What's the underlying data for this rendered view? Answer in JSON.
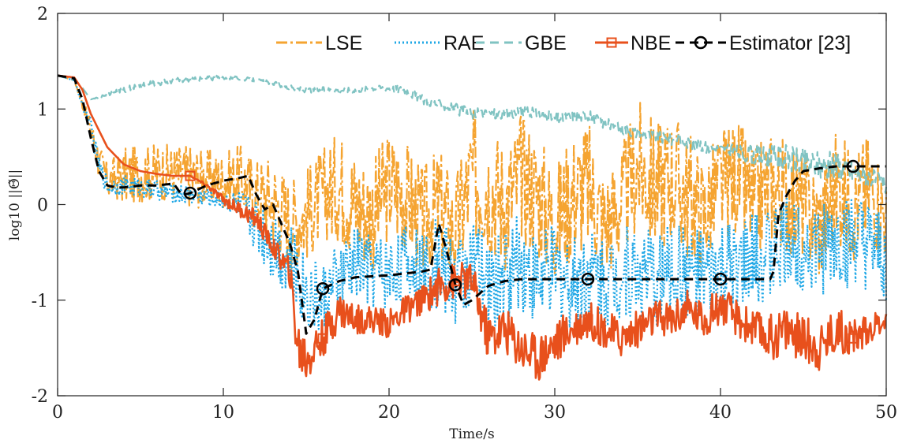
{
  "chart_data": {
    "type": "line",
    "xlabel": "Time/s",
    "ylabel": "log10 ||Θ̃||",
    "xlim": [
      0,
      50
    ],
    "ylim": [
      -2,
      2
    ],
    "xticks": [
      "0",
      "10",
      "20",
      "30",
      "40",
      "50"
    ],
    "yticks": [
      "-2",
      "-1",
      "0",
      "1",
      "2"
    ],
    "grid": false,
    "legend_placement": "top-right",
    "series": [
      {
        "name": "LSE",
        "color": "#f5a431",
        "style": "dash-dot",
        "marker": "none",
        "x": [
          0,
          1,
          2,
          2.5,
          3,
          4,
          5,
          6,
          7,
          8,
          9,
          10,
          11,
          12,
          13,
          14,
          15,
          16,
          17,
          18,
          19,
          20,
          21,
          22,
          23,
          24,
          25,
          26,
          27,
          28,
          29,
          30,
          31,
          32,
          33,
          34,
          35,
          36,
          37,
          38,
          39,
          40,
          41,
          42,
          43,
          44,
          45,
          46,
          47,
          48,
          49,
          50
        ],
        "values": [
          1.35,
          1.3,
          0.8,
          0.45,
          0.25,
          0.3,
          0.32,
          0.35,
          0.33,
          0.3,
          0.28,
          0.25,
          0.28,
          0.1,
          0.05,
          -0.2,
          -0.1,
          0.1,
          0.2,
          0.0,
          -0.1,
          0.2,
          0.1,
          -0.2,
          0.0,
          -0.3,
          0.3,
          0.2,
          0.0,
          0.3,
          0.1,
          -0.2,
          0.1,
          0.2,
          -0.2,
          0.0,
          0.4,
          0.2,
          0.3,
          0.1,
          -0.1,
          0.2,
          0.3,
          0.0,
          0.2,
          0.1,
          0.0,
          -0.2,
          0.2,
          0.0,
          0.2,
          -0.1
        ],
        "spread": [
          0,
          0,
          0.1,
          0.2,
          0.2,
          0.3,
          0.3,
          0.3,
          0.3,
          0.35,
          0.3,
          0.3,
          0.35,
          0.4,
          0.5,
          0.5,
          0.5,
          0.5,
          0.6,
          0.6,
          0.6,
          0.6,
          0.6,
          0.6,
          0.6,
          0.6,
          0.7,
          0.7,
          0.7,
          0.7,
          0.7,
          0.6,
          0.7,
          0.7,
          0.6,
          0.6,
          0.7,
          0.7,
          0.7,
          0.7,
          0.6,
          0.6,
          0.6,
          0.6,
          0.6,
          0.6,
          0.6,
          0.6,
          0.6,
          0.6,
          0.6,
          0.5
        ]
      },
      {
        "name": "RAE",
        "color": "#1ea7e6",
        "style": "dotted",
        "marker": "none",
        "x": [
          0,
          1,
          2,
          2.5,
          3,
          4,
          5,
          6,
          7,
          8,
          9,
          10,
          11,
          12,
          13,
          14,
          15,
          16,
          17,
          18,
          19,
          20,
          21,
          22,
          23,
          24,
          25,
          26,
          27,
          28,
          29,
          30,
          31,
          32,
          33,
          34,
          35,
          36,
          37,
          38,
          39,
          40,
          41,
          42,
          43,
          44,
          45,
          46,
          47,
          48,
          49,
          50
        ],
        "values": [
          1.35,
          1.3,
          0.8,
          0.4,
          0.2,
          0.2,
          0.18,
          0.15,
          0.12,
          0.1,
          0.08,
          0.05,
          0.0,
          -0.2,
          -0.4,
          -0.6,
          -0.9,
          -1.0,
          -0.8,
          -0.6,
          -0.7,
          -0.7,
          -0.6,
          -0.7,
          -0.6,
          -0.8,
          -0.6,
          -0.9,
          -0.7,
          -0.6,
          -0.8,
          -0.7,
          -0.8,
          -0.7,
          -0.8,
          -0.7,
          -0.7,
          -0.8,
          -0.7,
          -0.7,
          -0.8,
          -0.7,
          -0.7,
          -0.6,
          -0.5,
          -0.4,
          -0.4,
          -0.5,
          -0.4,
          -0.4,
          -0.5,
          -0.6
        ],
        "spread": [
          0,
          0,
          0.1,
          0.1,
          0.1,
          0.1,
          0.1,
          0.1,
          0.1,
          0.1,
          0.1,
          0.1,
          0.15,
          0.3,
          0.4,
          0.4,
          0.4,
          0.4,
          0.4,
          0.4,
          0.4,
          0.4,
          0.4,
          0.4,
          0.5,
          0.5,
          0.5,
          0.5,
          0.5,
          0.5,
          0.5,
          0.5,
          0.5,
          0.5,
          0.5,
          0.5,
          0.5,
          0.5,
          0.5,
          0.5,
          0.5,
          0.5,
          0.5,
          0.5,
          0.5,
          0.5,
          0.5,
          0.5,
          0.5,
          0.5,
          0.5,
          0.5
        ]
      },
      {
        "name": "GBE",
        "color": "#80c3c2",
        "style": "dashed",
        "marker": "none",
        "x": [
          0,
          1,
          1.5,
          2,
          3,
          4,
          5,
          6,
          7,
          8,
          9,
          10,
          11,
          12,
          13,
          14,
          15,
          16,
          17,
          18,
          19,
          20,
          21,
          22,
          23,
          24,
          25,
          26,
          27,
          28,
          29,
          30,
          31,
          32,
          33,
          34,
          35,
          36,
          37,
          38,
          39,
          40,
          41,
          42,
          43,
          44,
          45,
          46,
          47,
          48,
          49,
          50
        ],
        "values": [
          1.35,
          1.3,
          1.22,
          1.1,
          1.15,
          1.2,
          1.25,
          1.27,
          1.3,
          1.3,
          1.32,
          1.33,
          1.32,
          1.3,
          1.27,
          1.22,
          1.2,
          1.2,
          1.2,
          1.2,
          1.22,
          1.22,
          1.2,
          1.1,
          1.05,
          1.0,
          0.95,
          0.95,
          0.95,
          0.97,
          0.95,
          0.9,
          0.92,
          0.93,
          0.85,
          0.8,
          0.75,
          0.72,
          0.68,
          0.65,
          0.6,
          0.58,
          0.55,
          0.52,
          0.5,
          0.48,
          0.45,
          0.42,
          0.4,
          0.35,
          0.3,
          0.2
        ],
        "spread": [
          0,
          0,
          0,
          0,
          0.02,
          0.03,
          0.03,
          0.03,
          0.03,
          0.03,
          0.03,
          0.02,
          0.02,
          0.02,
          0.02,
          0.03,
          0.03,
          0.03,
          0.03,
          0.03,
          0.03,
          0.03,
          0.05,
          0.05,
          0.05,
          0.06,
          0.06,
          0.06,
          0.06,
          0.06,
          0.06,
          0.06,
          0.06,
          0.06,
          0.06,
          0.06,
          0.06,
          0.06,
          0.06,
          0.06,
          0.06,
          0.06,
          0.08,
          0.1,
          0.12,
          0.15,
          0.15,
          0.15,
          0.15,
          0.12,
          0.1,
          0.1
        ]
      },
      {
        "name": "NBE",
        "color": "#e8501c",
        "style": "solid",
        "marker": "square",
        "marker_x": [
          8,
          16,
          24,
          32,
          40,
          48
        ],
        "x": [
          0,
          1,
          1.5,
          2,
          3,
          4,
          5,
          6,
          7,
          8,
          9,
          10,
          11,
          12,
          13,
          14,
          14.5,
          15,
          16,
          17,
          18,
          19,
          20,
          21,
          22,
          23,
          24,
          25,
          26,
          27,
          28,
          29,
          30,
          31,
          32,
          33,
          34,
          35,
          36,
          37,
          38,
          39,
          40,
          41,
          42,
          43,
          44,
          45,
          46,
          47,
          48,
          49,
          50
        ],
        "values": [
          1.35,
          1.33,
          1.2,
          0.95,
          0.6,
          0.42,
          0.35,
          0.32,
          0.3,
          0.3,
          0.2,
          0.05,
          -0.05,
          -0.15,
          -0.45,
          -0.7,
          -1.5,
          -1.6,
          -1.4,
          -1.1,
          -1.2,
          -1.2,
          -1.25,
          -1.1,
          -1.0,
          -0.85,
          -0.8,
          -0.8,
          -1.4,
          -1.3,
          -1.5,
          -1.6,
          -1.45,
          -1.3,
          -1.2,
          -1.3,
          -1.4,
          -1.3,
          -1.2,
          -1.2,
          -1.1,
          -1.2,
          -1.05,
          -1.2,
          -1.3,
          -1.4,
          -1.3,
          -1.4,
          -1.5,
          -1.3,
          -1.4,
          -1.3,
          -1.2
        ],
        "spread": [
          0,
          0,
          0,
          0,
          0,
          0,
          0,
          0,
          0,
          0,
          0.02,
          0.05,
          0.08,
          0.1,
          0.1,
          0.15,
          0.3,
          0.3,
          0.2,
          0.2,
          0.15,
          0.15,
          0.15,
          0.15,
          0.15,
          0.2,
          0.2,
          0.2,
          0.25,
          0.25,
          0.25,
          0.25,
          0.25,
          0.2,
          0.2,
          0.2,
          0.2,
          0.2,
          0.2,
          0.2,
          0.2,
          0.2,
          0.2,
          0.2,
          0.2,
          0.25,
          0.25,
          0.25,
          0.25,
          0.25,
          0.2,
          0.15,
          0.1
        ]
      },
      {
        "name": "Estimator [23]",
        "color": "#000000",
        "style": "dashed",
        "marker": "circle",
        "marker_x": [
          8,
          16,
          24,
          32,
          40,
          48
        ],
        "x": [
          0,
          1,
          1.5,
          2,
          2.5,
          3,
          3.5,
          4,
          5,
          6,
          7,
          7.5,
          8,
          9,
          10,
          11,
          11.5,
          12,
          12.5,
          13,
          13.5,
          14,
          14.5,
          15,
          15.5,
          16,
          17,
          18,
          19,
          20,
          21,
          22,
          22.5,
          23,
          23.5,
          24,
          24.5,
          25,
          26,
          27,
          28,
          29,
          30,
          31,
          32,
          33,
          34,
          35,
          36,
          37,
          38,
          39,
          40,
          41,
          42,
          43,
          43.2,
          43.5,
          44,
          44.5,
          45,
          46,
          47,
          48,
          49,
          50
        ],
        "values": [
          1.35,
          1.32,
          1.1,
          0.7,
          0.35,
          0.2,
          0.18,
          0.18,
          0.2,
          0.2,
          0.22,
          0.1,
          0.12,
          0.2,
          0.25,
          0.28,
          0.3,
          0.1,
          -0.05,
          0.0,
          -0.2,
          -0.4,
          -0.7,
          -1.35,
          -1.2,
          -0.88,
          -0.8,
          -0.76,
          -0.75,
          -0.74,
          -0.72,
          -0.7,
          -0.68,
          -0.2,
          -0.5,
          -0.84,
          -1.05,
          -1.0,
          -0.85,
          -0.8,
          -0.78,
          -0.78,
          -0.78,
          -0.78,
          -0.78,
          -0.78,
          -0.78,
          -0.78,
          -0.78,
          -0.78,
          -0.78,
          -0.78,
          -0.78,
          -0.78,
          -0.78,
          -0.78,
          -0.7,
          -0.1,
          0.1,
          0.25,
          0.35,
          0.38,
          0.4,
          0.4,
          0.4,
          0.4
        ]
      }
    ]
  }
}
